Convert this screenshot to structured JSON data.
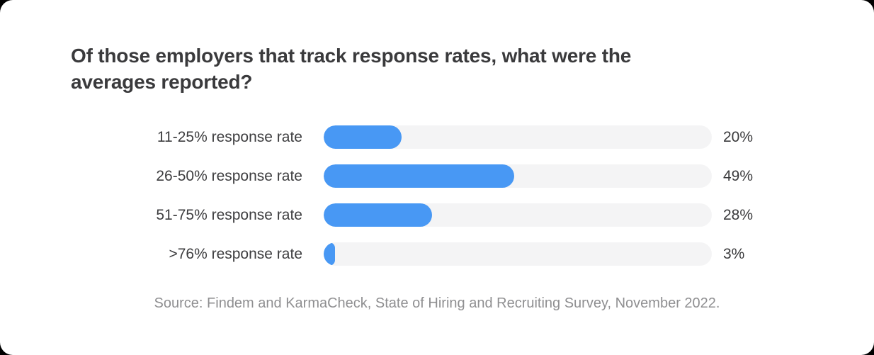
{
  "header": {
    "title_line1": "Of those employers that track response rates, what were the",
    "title_line2": "averages reported?"
  },
  "footer": {
    "source": "Source: Findem and KarmaCheck, State of Hiring and Recruiting Survey, November 2022."
  },
  "colors": {
    "bar_fill": "#4898F4",
    "bar_track": "#F4F4F5",
    "title_text": "#3A3A3C",
    "label_text": "#3D3D3F",
    "value_text": "#3A3A3C",
    "source_text": "#8F8F91",
    "card_bg": "#FFFFFF",
    "page_bg": "#000000"
  },
  "chart_data": {
    "type": "bar",
    "orientation": "horizontal",
    "title": "Of those employers that track response rates, what were the averages reported?",
    "categories": [
      "11-25% response rate",
      "26-50% response rate",
      "51-75% response rate",
      ">76% response rate"
    ],
    "values": [
      20,
      49,
      28,
      3
    ],
    "value_labels": [
      "20%",
      "49%",
      "28%",
      "3%"
    ],
    "xlim": [
      0,
      100
    ],
    "grid": false,
    "legend": "none",
    "source": "Source: Findem and KarmaCheck, State of Hiring and Recruiting Survey, November 2022."
  }
}
